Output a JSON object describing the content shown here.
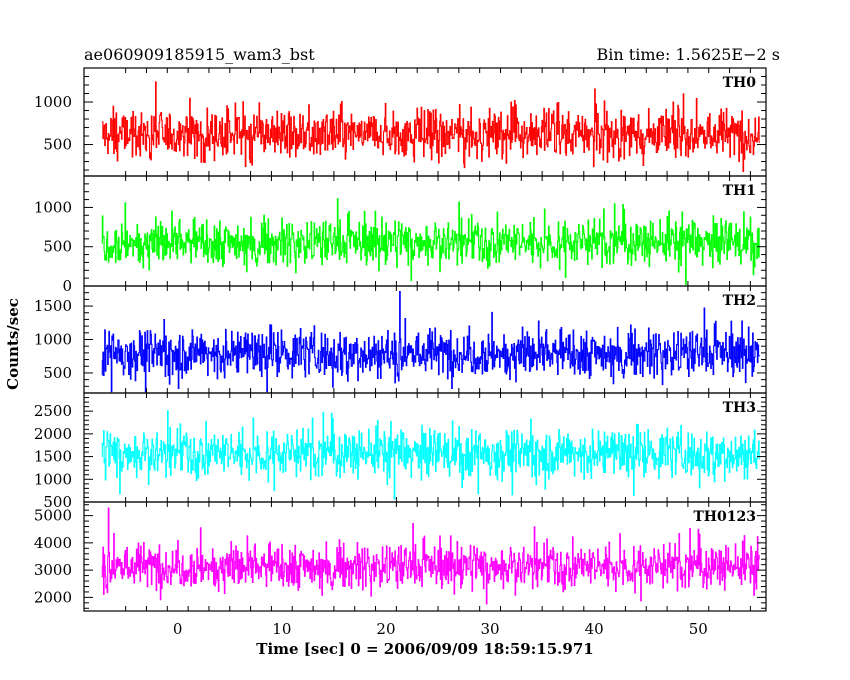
{
  "header": {
    "title_left": "ae060909185915_wam3_bst",
    "title_right": "Bin time: 1.5625E−2 s"
  },
  "axes": {
    "xlabel": "Time [sec] 0 = 2006/09/09 18:59:15.971",
    "ylabel": "Counts/sec"
  },
  "chart_data": {
    "type": "line",
    "title": "ae060909185915_wam3_bst",
    "subtitle": "Bin time: 1.5625E−2 s",
    "xlabel": "Time [sec] 0 = 2006/09/09 18:59:15.971",
    "ylabel": "Counts/sec",
    "xlim": [
      -9,
      56.5
    ],
    "x_data_range": [
      -7.3,
      55.9
    ],
    "xticks": [
      0,
      10,
      20,
      30,
      40,
      50
    ],
    "grid": false,
    "panels": [
      {
        "name": "TH0",
        "color": "#ff0000",
        "ylim": [
          130,
          1400
        ],
        "yticks": [
          500,
          1000
        ],
        "baseline": 620,
        "spread": 230,
        "min": 180,
        "max": 1400
      },
      {
        "name": "TH1",
        "color": "#00ff00",
        "ylim": [
          0,
          1400
        ],
        "yticks": [
          0,
          500,
          1000
        ],
        "baseline": 560,
        "spread": 230,
        "min": 20,
        "max": 1300
      },
      {
        "name": "TH2",
        "color": "#0000ff",
        "ylim": [
          200,
          1800
        ],
        "yticks": [
          500,
          1000,
          1500
        ],
        "baseline": 800,
        "spread": 280,
        "min": 220,
        "max": 1800
      },
      {
        "name": "TH3",
        "color": "#00ffff",
        "ylim": [
          500,
          2900
        ],
        "yticks": [
          500,
          1000,
          1500,
          2000,
          2500
        ],
        "baseline": 1580,
        "spread": 420,
        "min": 560,
        "max": 2900
      },
      {
        "name": "TH0123",
        "color": "#ff00ff",
        "ylim": [
          1500,
          5500
        ],
        "yticks": [
          2000,
          3000,
          4000,
          5000
        ],
        "baseline": 3150,
        "spread": 650,
        "min": 1600,
        "max": 5300
      }
    ]
  }
}
